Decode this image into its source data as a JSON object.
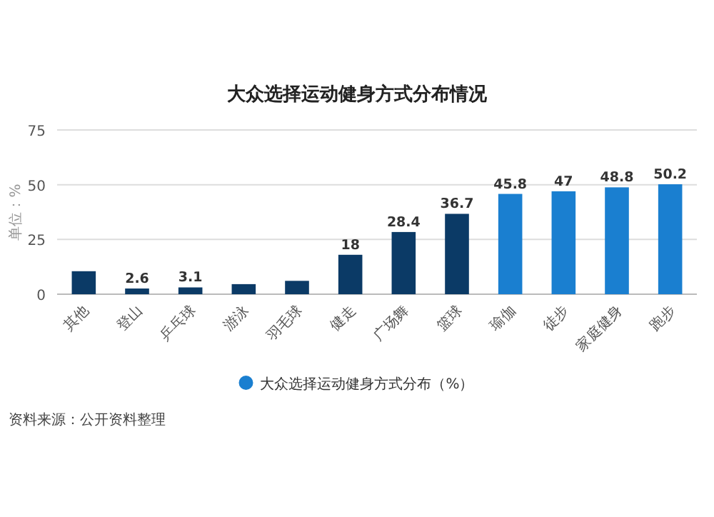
{
  "chart_data": {
    "type": "bar",
    "title": "大众选择运动健身方式分布情况",
    "ylabel": "单位：%",
    "categories": [
      "其他",
      "登山",
      "乒乓球",
      "游泳",
      "羽毛球",
      "健走",
      "广场舞",
      "篮球",
      "瑜伽",
      "徒步",
      "家庭健身",
      "跑步"
    ],
    "series": [
      {
        "name": "大众选择运动健身方式分布（%）",
        "color": "#1a7fd0",
        "values": [
          10.5,
          2.6,
          3.1,
          4.6,
          6.1,
          18,
          28.4,
          36.7,
          45.8,
          47,
          48.8,
          50.2
        ],
        "value_labels": [
          null,
          "2.6",
          "3.1",
          null,
          null,
          "18",
          "28.4",
          "36.7",
          "45.8",
          "47",
          "48.8",
          "50.2"
        ],
        "colors": [
          "#0b3a66",
          "#0b3a66",
          "#0b3a66",
          "#0b3a66",
          "#0b3a66",
          "#0b3a66",
          "#0b3a66",
          "#0b3a66",
          "#1a7fd0",
          "#1a7fd0",
          "#1a7fd0",
          "#1a7fd0"
        ]
      }
    ],
    "ylim": [
      0,
      75
    ],
    "yticks": [
      0,
      25,
      50,
      75
    ],
    "grid": "y",
    "legend": "bottom",
    "annotations": [
      "资料来源：公开资料整理"
    ]
  }
}
